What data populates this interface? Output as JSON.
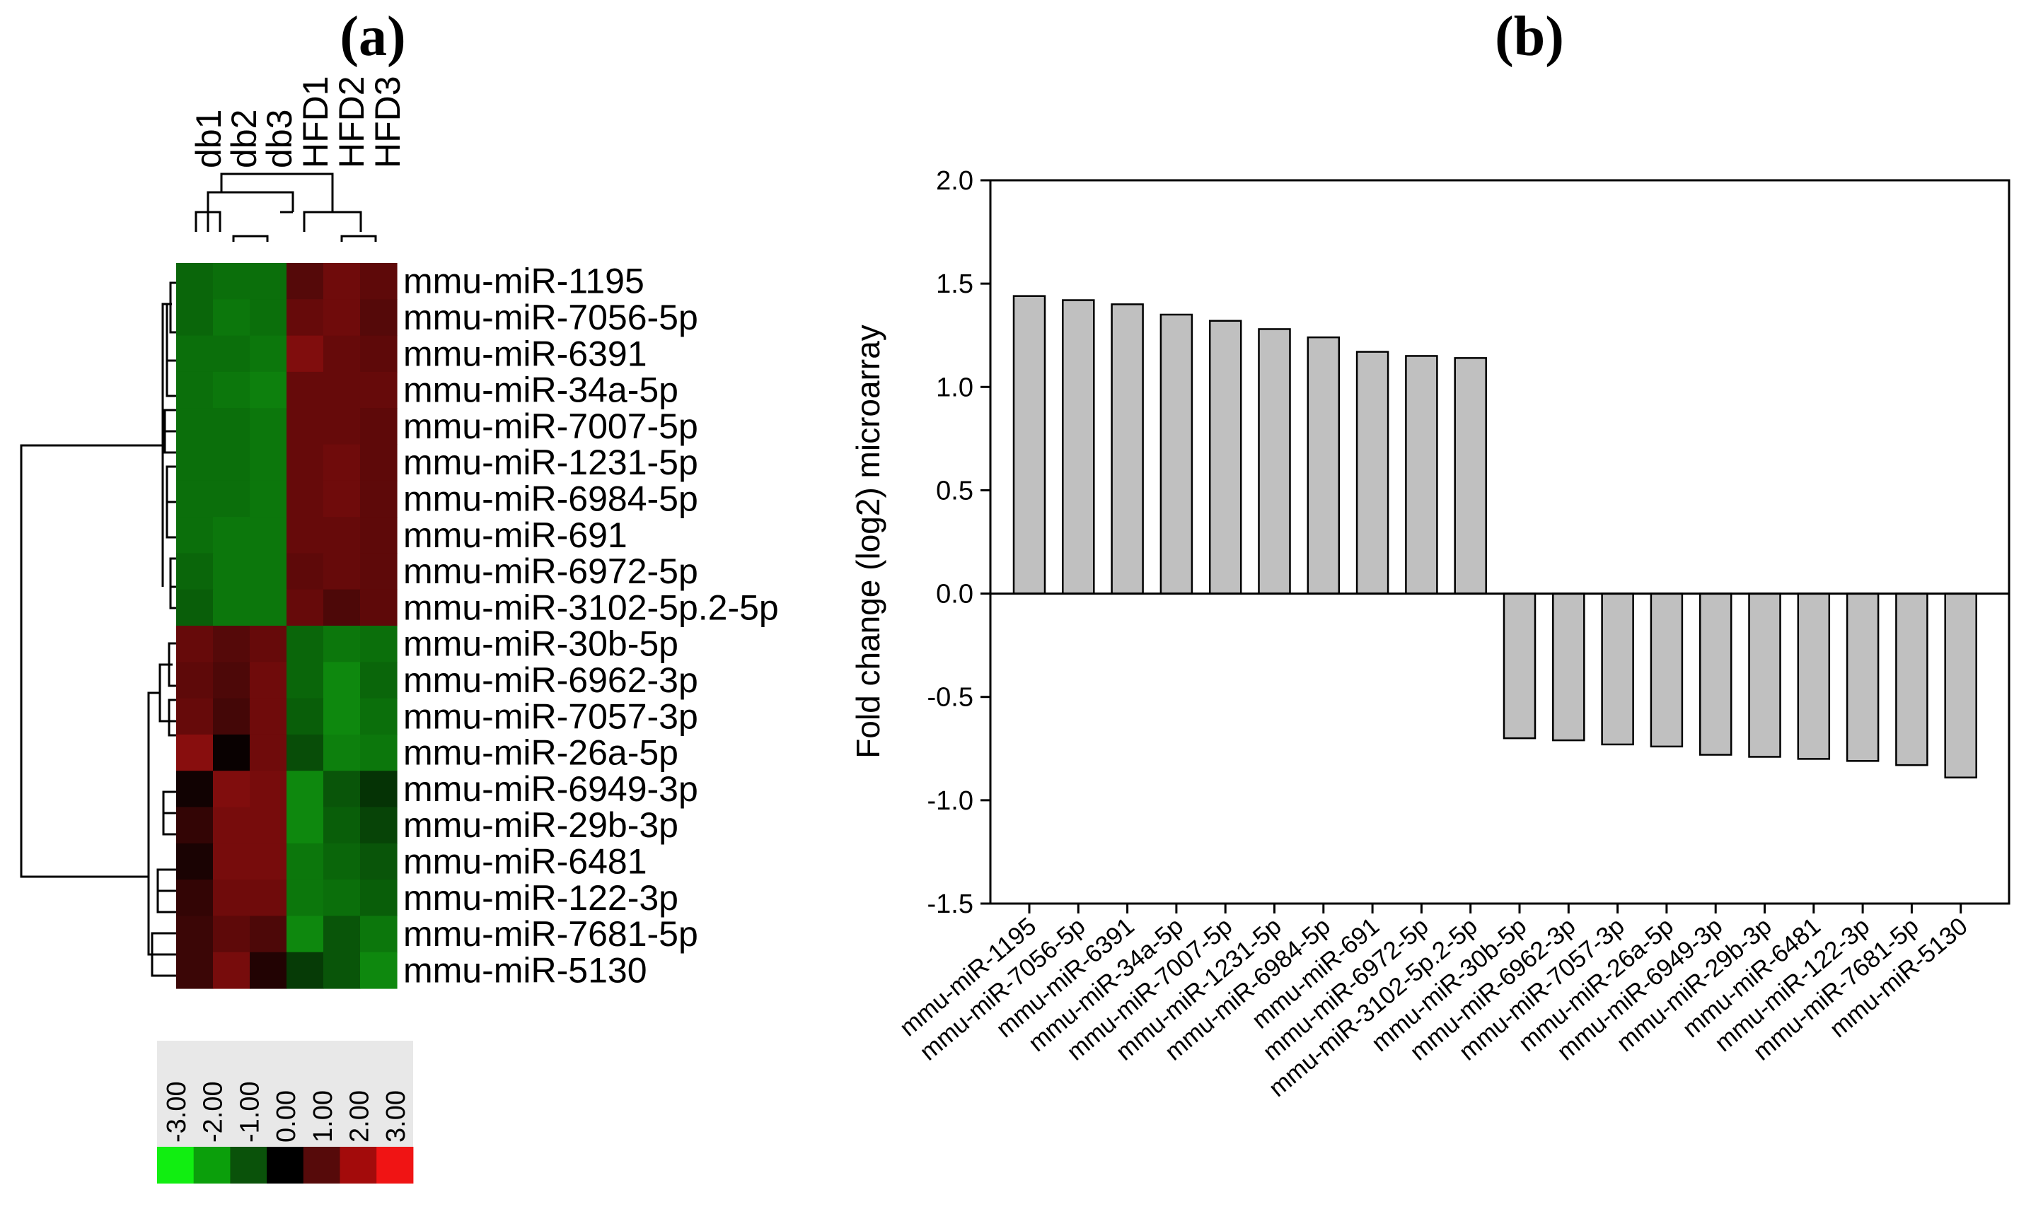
{
  "panels": {
    "a": "(a)",
    "b": "(b)"
  },
  "colors": {
    "down": "#0f8c0f",
    "up": "#8c1111",
    "bar_fill": "#c0c0c0",
    "bar_stroke": "#000000",
    "scale_bg": "#e8e8e8"
  },
  "heatmap": {
    "columns": [
      "db1",
      "db2",
      "db3",
      "HFD1",
      "HFD2",
      "HFD3"
    ],
    "rows": [
      "mmu-miR-1195",
      "mmu-miR-7056-5p",
      "mmu-miR-6391",
      "mmu-miR-34a-5p",
      "mmu-miR-7007-5p",
      "mmu-miR-1231-5p",
      "mmu-miR-6984-5p",
      "mmu-miR-691",
      "mmu-miR-6972-5p",
      "mmu-miR-3102-5p.2-5p",
      "mmu-miR-30b-5p",
      "mmu-miR-6962-3p",
      "mmu-miR-7057-3p",
      "mmu-miR-26a-5p",
      "mmu-miR-6949-3p",
      "mmu-miR-29b-3p",
      "mmu-miR-6481",
      "mmu-miR-122-3p",
      "mmu-miR-7681-5p",
      "mmu-miR-5130"
    ],
    "values": [
      [
        -1.2,
        -1.3,
        -1.3,
        1.0,
        1.3,
        1.1
      ],
      [
        -1.2,
        -1.4,
        -1.3,
        1.2,
        1.3,
        1.0
      ],
      [
        -1.3,
        -1.3,
        -1.4,
        1.5,
        1.2,
        1.1
      ],
      [
        -1.3,
        -1.4,
        -1.5,
        1.2,
        1.2,
        1.2
      ],
      [
        -1.3,
        -1.3,
        -1.4,
        1.2,
        1.2,
        1.1
      ],
      [
        -1.3,
        -1.3,
        -1.4,
        1.2,
        1.3,
        1.1
      ],
      [
        -1.3,
        -1.3,
        -1.4,
        1.2,
        1.3,
        1.1
      ],
      [
        -1.3,
        -1.4,
        -1.4,
        1.2,
        1.2,
        1.1
      ],
      [
        -1.2,
        -1.4,
        -1.4,
        1.1,
        1.2,
        1.1
      ],
      [
        -1.1,
        -1.4,
        -1.4,
        1.2,
        0.9,
        1.1
      ],
      [
        1.2,
        1.0,
        1.2,
        -1.2,
        -1.4,
        -1.3
      ],
      [
        1.1,
        0.9,
        1.3,
        -1.2,
        -1.6,
        -1.2
      ],
      [
        1.2,
        0.8,
        1.3,
        -1.1,
        -1.6,
        -1.3
      ],
      [
        1.6,
        0.1,
        1.3,
        -0.9,
        -1.5,
        -1.4
      ],
      [
        0.2,
        1.5,
        1.4,
        -1.6,
        -1.0,
        -0.6
      ],
      [
        0.6,
        1.4,
        1.4,
        -1.6,
        -1.1,
        -0.8
      ],
      [
        0.3,
        1.4,
        1.4,
        -1.4,
        -1.2,
        -1.0
      ],
      [
        0.6,
        1.3,
        1.3,
        -1.4,
        -1.3,
        -1.1
      ],
      [
        0.7,
        1.1,
        0.9,
        -1.6,
        -1.0,
        -1.4
      ],
      [
        0.7,
        1.4,
        0.4,
        -0.7,
        -1.0,
        -1.6
      ]
    ],
    "scale": {
      "labels": [
        "-3.00",
        "-2.00",
        "-1.00",
        "0.00",
        "1.00",
        "2.00",
        "3.00"
      ],
      "colors": [
        "#11ee11",
        "#0b9f0b",
        "#0a520a",
        "#000000",
        "#560a0a",
        "#a30b0b",
        "#f01414"
      ]
    }
  },
  "chart_data": {
    "type": "bar",
    "title": "",
    "xlabel": "",
    "ylabel": "Fold change (log2) microarray",
    "ylim": [
      -1.5,
      2.0
    ],
    "yticks": [
      "2.0",
      "1.5",
      "1.0",
      "0.5",
      "0.0",
      "-0.5",
      "-1.0",
      "-1.5"
    ],
    "categories": [
      "mmu-miR-1195",
      "mmu-miR-7056-5p",
      "mmu-miR-6391",
      "mmu-miR-34a-5p",
      "mmu-miR-7007-5p",
      "mmu-miR-1231-5p",
      "mmu-miR-6984-5p",
      "mmu-miR-691",
      "mmu-miR-6972-5p",
      "mmu-miR-3102-5p.2-5p",
      "mmu-miR-30b-5p",
      "mmu-miR-6962-3p",
      "mmu-miR-7057-3p",
      "mmu-miR-26a-5p",
      "mmu-miR-6949-3p",
      "mmu-miR-29b-3p",
      "mmu-miR-6481",
      "mmu-miR-122-3p",
      "mmu-miR-7681-5p",
      "mmu-miR-5130"
    ],
    "values": [
      1.44,
      1.42,
      1.4,
      1.35,
      1.32,
      1.28,
      1.24,
      1.17,
      1.15,
      1.14,
      -0.7,
      -0.71,
      -0.73,
      -0.74,
      -0.78,
      -0.79,
      -0.8,
      -0.81,
      -0.83,
      -0.89
    ]
  }
}
